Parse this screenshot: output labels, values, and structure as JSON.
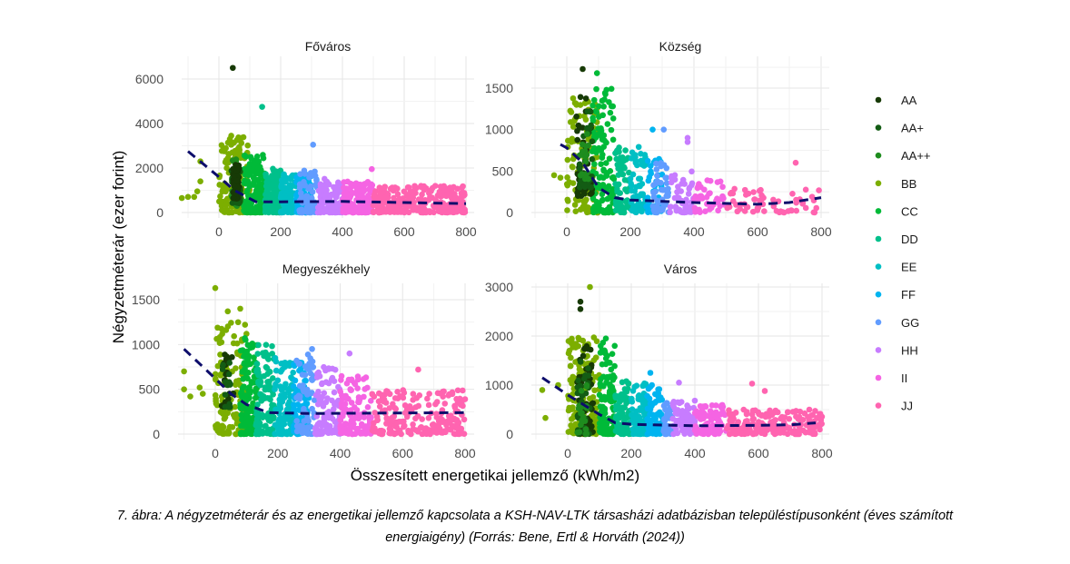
{
  "chart_data": {
    "type": "scatter",
    "xlabel": "Összesített energetikai jellemző (kWh/m2)",
    "ylabel": "Négyzetméterár (ezer forint)",
    "legend_position": "right",
    "grid": true,
    "categories": [
      "AA",
      "AA+",
      "AA++",
      "BB",
      "CC",
      "DD",
      "EE",
      "FF",
      "GG",
      "HH",
      "II",
      "JJ"
    ],
    "colors": {
      "AA": "#173a06",
      "AA+": "#135c14",
      "AA++": "#1e8c1e",
      "BB": "#7cae00",
      "CC": "#00ba38",
      "DD": "#00c08b",
      "EE": "#00bfc4",
      "FF": "#00b4f0",
      "GG": "#619cff",
      "HH": "#c77cff",
      "II": "#f564e3",
      "JJ": "#ff64b0"
    },
    "trend_color": "#0d0d6b",
    "panels": [
      {
        "title": "Főváros",
        "xlim": [
          -120,
          820
        ],
        "ylim": [
          0,
          6700
        ],
        "xticks": [
          0,
          200,
          400,
          600,
          800
        ],
        "yticks": [
          0,
          2000,
          4000,
          6000
        ],
        "clouds": [
          [
            "BB",
            0,
            100,
            0,
            3400,
            140
          ],
          [
            "CC",
            80,
            150,
            0,
            2600,
            150
          ],
          [
            "DD",
            150,
            200,
            0,
            2000,
            110
          ],
          [
            "EE",
            200,
            250,
            0,
            1800,
            100
          ],
          [
            "FF",
            250,
            300,
            0,
            1800,
            100
          ],
          [
            "GG",
            260,
            320,
            0,
            1900,
            70
          ],
          [
            "HH",
            320,
            400,
            0,
            1600,
            120
          ],
          [
            "II",
            400,
            500,
            0,
            1400,
            140
          ],
          [
            "JJ",
            500,
            800,
            0,
            1200,
            260
          ],
          [
            "AA++",
            40,
            70,
            300,
            2400,
            30
          ],
          [
            "AA+",
            40,
            70,
            400,
            2300,
            40
          ],
          [
            "AA",
            45,
            65,
            600,
            2200,
            40
          ]
        ],
        "outliers": [
          [
            "AA",
            45,
            6500
          ],
          [
            "DD",
            140,
            4750
          ],
          [
            "GG",
            305,
            3050
          ],
          [
            "II",
            495,
            1950
          ],
          [
            "BB",
            -120,
            650
          ],
          [
            "BB",
            -100,
            700
          ],
          [
            "BB",
            -80,
            700
          ],
          [
            "BB",
            -70,
            950
          ],
          [
            "BB",
            -60,
            1400
          ],
          [
            "BB",
            -60,
            2300
          ],
          [
            "BB",
            40,
            3450
          ]
        ],
        "trend": [
          [
            -100,
            2750
          ],
          [
            0,
            1600
          ],
          [
            50,
            1000
          ],
          [
            120,
            480
          ],
          [
            200,
            480
          ],
          [
            400,
            500
          ],
          [
            600,
            450
          ],
          [
            800,
            400
          ]
        ]
      },
      {
        "title": "Község",
        "xlim": [
          -90,
          820
        ],
        "ylim": [
          0,
          1750
        ],
        "xticks": [
          0,
          200,
          400,
          600,
          800
        ],
        "yticks": [
          0,
          500,
          1000,
          1500
        ],
        "clouds": [
          [
            "BB",
            0,
            100,
            0,
            1400,
            120
          ],
          [
            "CC",
            80,
            150,
            0,
            1500,
            120
          ],
          [
            "DD",
            150,
            200,
            0,
            800,
            70
          ],
          [
            "EE",
            200,
            250,
            0,
            800,
            60
          ],
          [
            "FF",
            250,
            300,
            0,
            650,
            50
          ],
          [
            "GG",
            270,
            320,
            0,
            600,
            40
          ],
          [
            "HH",
            320,
            400,
            0,
            500,
            50
          ],
          [
            "II",
            400,
            500,
            0,
            400,
            40
          ],
          [
            "JJ",
            500,
            800,
            0,
            300,
            60
          ],
          [
            "AA",
            30,
            80,
            200,
            1400,
            40
          ],
          [
            "AA+",
            40,
            80,
            300,
            1300,
            30
          ],
          [
            "AA++",
            40,
            70,
            400,
            1000,
            20
          ]
        ],
        "outliers": [
          [
            "AA",
            50,
            1730
          ],
          [
            "CC",
            95,
            1680
          ],
          [
            "FF",
            270,
            1000
          ],
          [
            "GG",
            305,
            1000
          ],
          [
            "HH",
            380,
            900
          ],
          [
            "HH",
            380,
            850
          ],
          [
            "JJ",
            720,
            600
          ],
          [
            "BB",
            -40,
            450
          ],
          [
            "BB",
            -20,
            420
          ]
        ],
        "trend": [
          [
            -20,
            820
          ],
          [
            0,
            780
          ],
          [
            50,
            600
          ],
          [
            100,
            300
          ],
          [
            150,
            180
          ],
          [
            200,
            150
          ],
          [
            400,
            120
          ],
          [
            600,
            100
          ],
          [
            700,
            120
          ],
          [
            800,
            180
          ]
        ]
      },
      {
        "title": "Megyeszékhely",
        "xlim": [
          -120,
          820
        ],
        "ylim": [
          0,
          1700
        ],
        "xticks": [
          0,
          200,
          400,
          600,
          800
        ],
        "yticks": [
          0,
          500,
          1000,
          1500
        ],
        "clouds": [
          [
            "BB",
            0,
            100,
            0,
            1250,
            140
          ],
          [
            "CC",
            80,
            140,
            0,
            1100,
            130
          ],
          [
            "DD",
            130,
            190,
            0,
            1000,
            110
          ],
          [
            "EE",
            190,
            250,
            0,
            850,
            100
          ],
          [
            "FF",
            250,
            300,
            0,
            800,
            90
          ],
          [
            "GG",
            260,
            320,
            0,
            900,
            70
          ],
          [
            "HH",
            320,
            400,
            0,
            750,
            100
          ],
          [
            "II",
            400,
            500,
            0,
            650,
            110
          ],
          [
            "JJ",
            500,
            800,
            0,
            500,
            200
          ],
          [
            "AA",
            20,
            60,
            300,
            900,
            20
          ],
          [
            "AA+",
            20,
            50,
            300,
            800,
            15
          ]
        ],
        "outliers": [
          [
            "BB",
            0,
            1630
          ],
          [
            "BB",
            80,
            1400
          ],
          [
            "BB",
            40,
            1370
          ],
          [
            "HH",
            430,
            900
          ],
          [
            "GG",
            310,
            950
          ],
          [
            "JJ",
            650,
            720
          ],
          [
            "JJ",
            800,
            390
          ],
          [
            "BB",
            -100,
            700
          ],
          [
            "BB",
            -100,
            500
          ],
          [
            "BB",
            -80,
            420
          ],
          [
            "BB",
            -50,
            520
          ],
          [
            "BB",
            -40,
            450
          ]
        ],
        "trend": [
          [
            -100,
            950
          ],
          [
            0,
            620
          ],
          [
            50,
            450
          ],
          [
            100,
            330
          ],
          [
            170,
            240
          ],
          [
            300,
            230
          ],
          [
            800,
            240
          ]
        ]
      },
      {
        "title": "Város",
        "xlim": [
          -90,
          820
        ],
        "ylim": [
          0,
          3100
        ],
        "xticks": [
          0,
          200,
          400,
          600,
          800
        ],
        "yticks": [
          0,
          1000,
          2000,
          3000
        ],
        "clouds": [
          [
            "BB",
            0,
            100,
            0,
            2000,
            160
          ],
          [
            "CC",
            100,
            150,
            0,
            1900,
            120
          ],
          [
            "DD",
            150,
            200,
            0,
            1100,
            100
          ],
          [
            "EE",
            200,
            250,
            0,
            1050,
            90
          ],
          [
            "FF",
            250,
            300,
            0,
            1000,
            80
          ],
          [
            "GG",
            300,
            330,
            0,
            700,
            50
          ],
          [
            "HH",
            330,
            400,
            0,
            700,
            80
          ],
          [
            "II",
            400,
            500,
            0,
            600,
            90
          ],
          [
            "JJ",
            500,
            800,
            0,
            500,
            180
          ],
          [
            "AA",
            30,
            80,
            0,
            1800,
            50
          ],
          [
            "AA+",
            30,
            70,
            0,
            1500,
            30
          ],
          [
            "AA++",
            30,
            60,
            0,
            1000,
            20
          ]
        ],
        "outliers": [
          [
            "BB",
            70,
            3000
          ],
          [
            "AA",
            40,
            2700
          ],
          [
            "AA",
            40,
            2550
          ],
          [
            "CC",
            120,
            1950
          ],
          [
            "FF",
            260,
            1250
          ],
          [
            "HH",
            350,
            1050
          ],
          [
            "JJ",
            580,
            1030
          ],
          [
            "JJ",
            620,
            880
          ],
          [
            "JJ",
            760,
            500
          ],
          [
            "BB",
            -80,
            900
          ],
          [
            "BB",
            -70,
            330
          ],
          [
            "BB",
            -30,
            1000
          ]
        ],
        "trend": [
          [
            -80,
            1150
          ],
          [
            0,
            800
          ],
          [
            50,
            600
          ],
          [
            100,
            400
          ],
          [
            150,
            230
          ],
          [
            200,
            200
          ],
          [
            400,
            170
          ],
          [
            600,
            180
          ],
          [
            700,
            190
          ],
          [
            780,
            230
          ]
        ]
      }
    ]
  },
  "caption": {
    "line1": "7. ábra: A négyzetméterár és az energetikai jellemző kapcsolata a KSH-NAV-LTK társasházi adatbázisban településtípusonként (éves számított",
    "line2": "energiaigény) (Forrás: Bene, Ertl & Horváth (2024))"
  }
}
